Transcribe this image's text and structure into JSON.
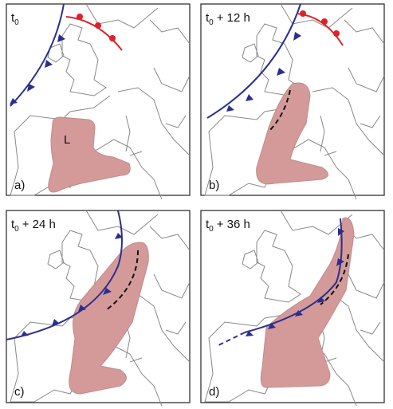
{
  "panels": [
    {
      "base": "t",
      "subscript": "0",
      "label": "a)",
      "low": "L"
    },
    {
      "base": "t",
      "subscript": "0",
      "offset": "+ 12 h",
      "label": "b)"
    },
    {
      "base": "t",
      "subscript": "0",
      "offset": "+ 24 h",
      "label": "c)"
    },
    {
      "base": "t",
      "subscript": "0",
      "offset": "+ 36 h",
      "label": "d)"
    }
  ]
}
